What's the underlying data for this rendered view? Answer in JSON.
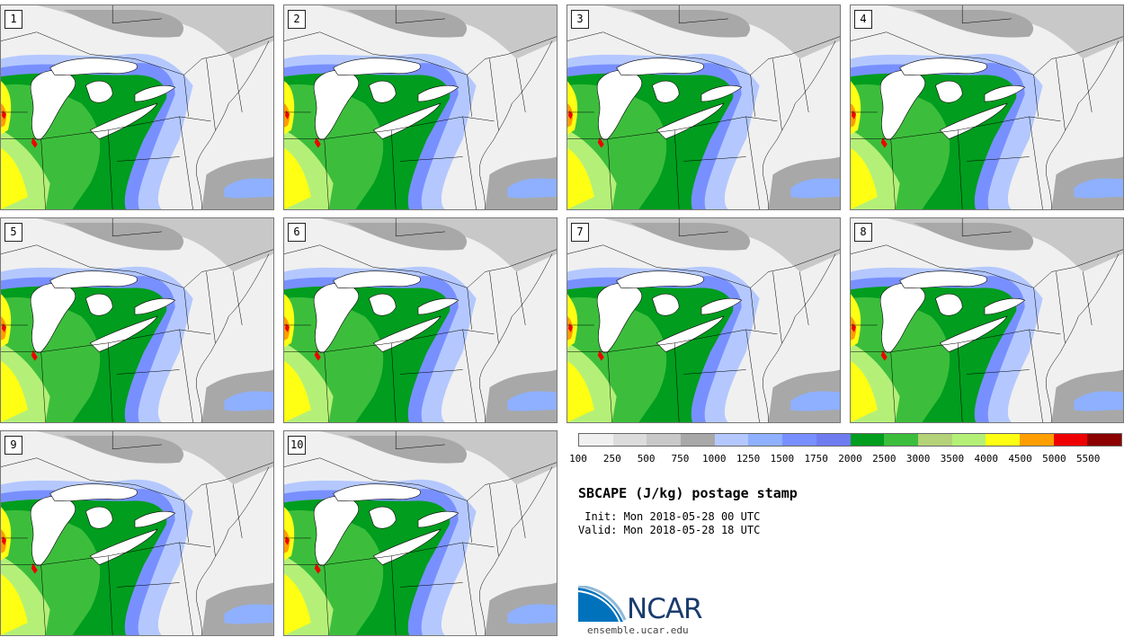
{
  "panels": [
    "1",
    "2",
    "3",
    "4",
    "5",
    "6",
    "7",
    "8",
    "9",
    "10"
  ],
  "legend": {
    "colors": [
      "#f0f0f0",
      "#dcdcdc",
      "#c8c8c8",
      "#a8a8a8",
      "#b4c8ff",
      "#8eb0ff",
      "#7890ff",
      "#6e7cf0",
      "#009d1e",
      "#3cbe3c",
      "#b4d278",
      "#b4f078",
      "#ffff14",
      "#ff9e00",
      "#ee0000",
      "#8c0000"
    ],
    "ticks": [
      "100",
      "250",
      "500",
      "750",
      "1000",
      "1250",
      "1500",
      "1750",
      "2000",
      "2500",
      "3000",
      "3500",
      "4000",
      "4500",
      "5000",
      "5500"
    ]
  },
  "title": "SBCAPE (J/kg) postage stamp",
  "init": " Init: Mon 2018-05-28 00 UTC",
  "valid": "Valid: Mon 2018-05-28 18 UTC",
  "logo": {
    "word": "NCAR",
    "url": "ensemble.ucar.edu"
  }
}
